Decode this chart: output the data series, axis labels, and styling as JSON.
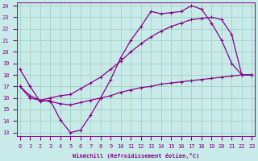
{
  "xlabel": "Windchill (Refroidissement éolien,°C)",
  "bg_color": "#c8eae8",
  "grid_color": "#99ccbb",
  "line_color": "#880088",
  "xlim": [
    -0.3,
    23.3
  ],
  "ylim": [
    12.7,
    24.3
  ],
  "xticks": [
    0,
    1,
    2,
    3,
    4,
    5,
    6,
    7,
    8,
    9,
    10,
    11,
    12,
    13,
    14,
    15,
    16,
    17,
    18,
    19,
    20,
    21,
    22,
    23
  ],
  "yticks": [
    13,
    14,
    15,
    16,
    17,
    18,
    19,
    20,
    21,
    22,
    23,
    24
  ],
  "line1_x": [
    0,
    1,
    2,
    3,
    4,
    5,
    6,
    7,
    8,
    9,
    10,
    11,
    12,
    13,
    14,
    15,
    16,
    17,
    18,
    19,
    20,
    21,
    22,
    23
  ],
  "line1_y": [
    18.5,
    17.0,
    15.7,
    15.8,
    14.1,
    13.0,
    13.2,
    14.5,
    16.0,
    17.6,
    19.5,
    21.0,
    22.2,
    23.5,
    23.3,
    23.4,
    23.5,
    24.0,
    23.7,
    22.5,
    21.0,
    19.0,
    18.0,
    18.0
  ],
  "line2_x": [
    0,
    1,
    2,
    3,
    4,
    5,
    6,
    7,
    8,
    9,
    10,
    11,
    12,
    13,
    14,
    15,
    16,
    17,
    18,
    19,
    20,
    21,
    22,
    23
  ],
  "line2_y": [
    17.0,
    16.0,
    15.8,
    16.0,
    16.2,
    16.3,
    16.8,
    17.3,
    17.8,
    18.5,
    19.2,
    20.0,
    20.7,
    21.3,
    21.8,
    22.2,
    22.5,
    22.8,
    22.9,
    23.0,
    22.8,
    21.5,
    18.0,
    18.0
  ],
  "line3_x": [
    0,
    1,
    2,
    3,
    4,
    5,
    6,
    7,
    8,
    9,
    10,
    11,
    12,
    13,
    14,
    15,
    16,
    17,
    18,
    19,
    20,
    21,
    22,
    23
  ],
  "line3_y": [
    17.0,
    16.2,
    15.8,
    15.7,
    15.5,
    15.4,
    15.6,
    15.8,
    16.0,
    16.2,
    16.5,
    16.7,
    16.9,
    17.0,
    17.2,
    17.3,
    17.4,
    17.5,
    17.6,
    17.7,
    17.8,
    17.9,
    18.0,
    18.0
  ]
}
